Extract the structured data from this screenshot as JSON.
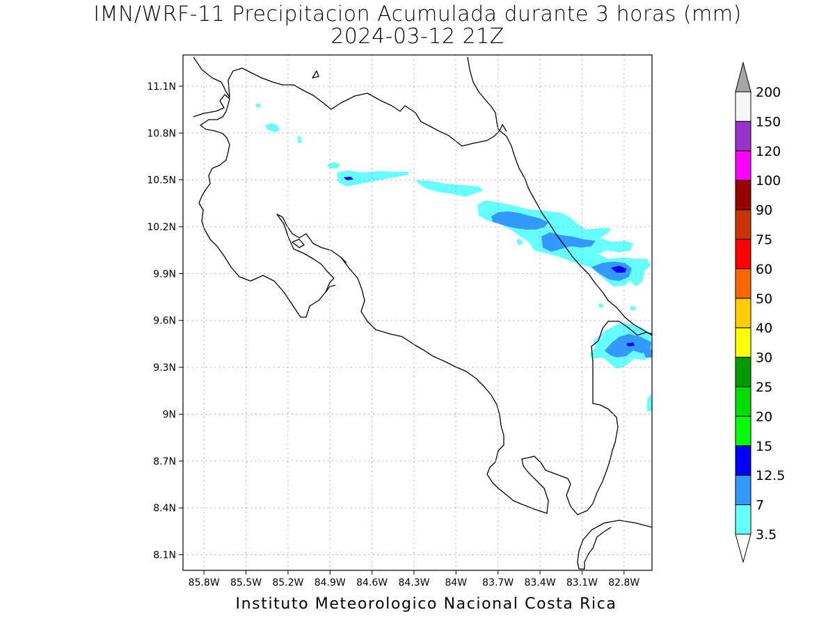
{
  "title": {
    "line1": "IMN/WRF-11 Precipitacion Acumulada durante 3 horas (mm)",
    "line2": "2024-03-12 21Z"
  },
  "footer": "Instituto Meteorologico Nacional Costa Rica",
  "map": {
    "lon_range": [
      -85.95,
      -82.6
    ],
    "lat_range": [
      8.0,
      11.3
    ],
    "lat_ticks": [
      {
        "value": 11.1,
        "label": "11.1N"
      },
      {
        "value": 10.8,
        "label": "10.8N"
      },
      {
        "value": 10.5,
        "label": "10.5N"
      },
      {
        "value": 10.2,
        "label": "10.2N"
      },
      {
        "value": 9.9,
        "label": "9.9N"
      },
      {
        "value": 9.6,
        "label": "9.6N"
      },
      {
        "value": 9.3,
        "label": "9.3N"
      },
      {
        "value": 9.0,
        "label": "9N"
      },
      {
        "value": 8.7,
        "label": "8.7N"
      },
      {
        "value": 8.4,
        "label": "8.4N"
      },
      {
        "value": 8.1,
        "label": "8.1N"
      }
    ],
    "lon_ticks": [
      {
        "value": -85.8,
        "label": "85.8W"
      },
      {
        "value": -85.5,
        "label": "85.5W"
      },
      {
        "value": -85.2,
        "label": "85.2W"
      },
      {
        "value": -84.9,
        "label": "84.9W"
      },
      {
        "value": -84.6,
        "label": "84.6W"
      },
      {
        "value": -84.3,
        "label": "84.3W"
      },
      {
        "value": -84.0,
        "label": "84W"
      },
      {
        "value": -83.7,
        "label": "83.7W"
      },
      {
        "value": -83.4,
        "label": "83.4W"
      },
      {
        "value": -83.1,
        "label": "83.1W"
      },
      {
        "value": -82.8,
        "label": "82.8W"
      }
    ],
    "grid": true
  },
  "legend": {
    "min_color": "#ffffff",
    "max_color": "#a6a6a6",
    "levels": [
      {
        "label": "3.5",
        "color": "#66ffff"
      },
      {
        "label": "7",
        "color": "#3399ff"
      },
      {
        "label": "12.5",
        "color": "#0000ff"
      },
      {
        "label": "15",
        "color": "#00ff00"
      },
      {
        "label": "20",
        "color": "#00dd00"
      },
      {
        "label": "25",
        "color": "#009900"
      },
      {
        "label": "30",
        "color": "#ffff00"
      },
      {
        "label": "40",
        "color": "#ffcc00"
      },
      {
        "label": "50",
        "color": "#ff6600"
      },
      {
        "label": "60",
        "color": "#ff0000"
      },
      {
        "label": "75",
        "color": "#cc3300"
      },
      {
        "label": "90",
        "color": "#990000"
      },
      {
        "label": "100",
        "color": "#ff00ff"
      },
      {
        "label": "120",
        "color": "#9933cc"
      },
      {
        "label": "150",
        "color": "#f5f5f5"
      },
      {
        "label": "200",
        "color": ""
      }
    ]
  }
}
